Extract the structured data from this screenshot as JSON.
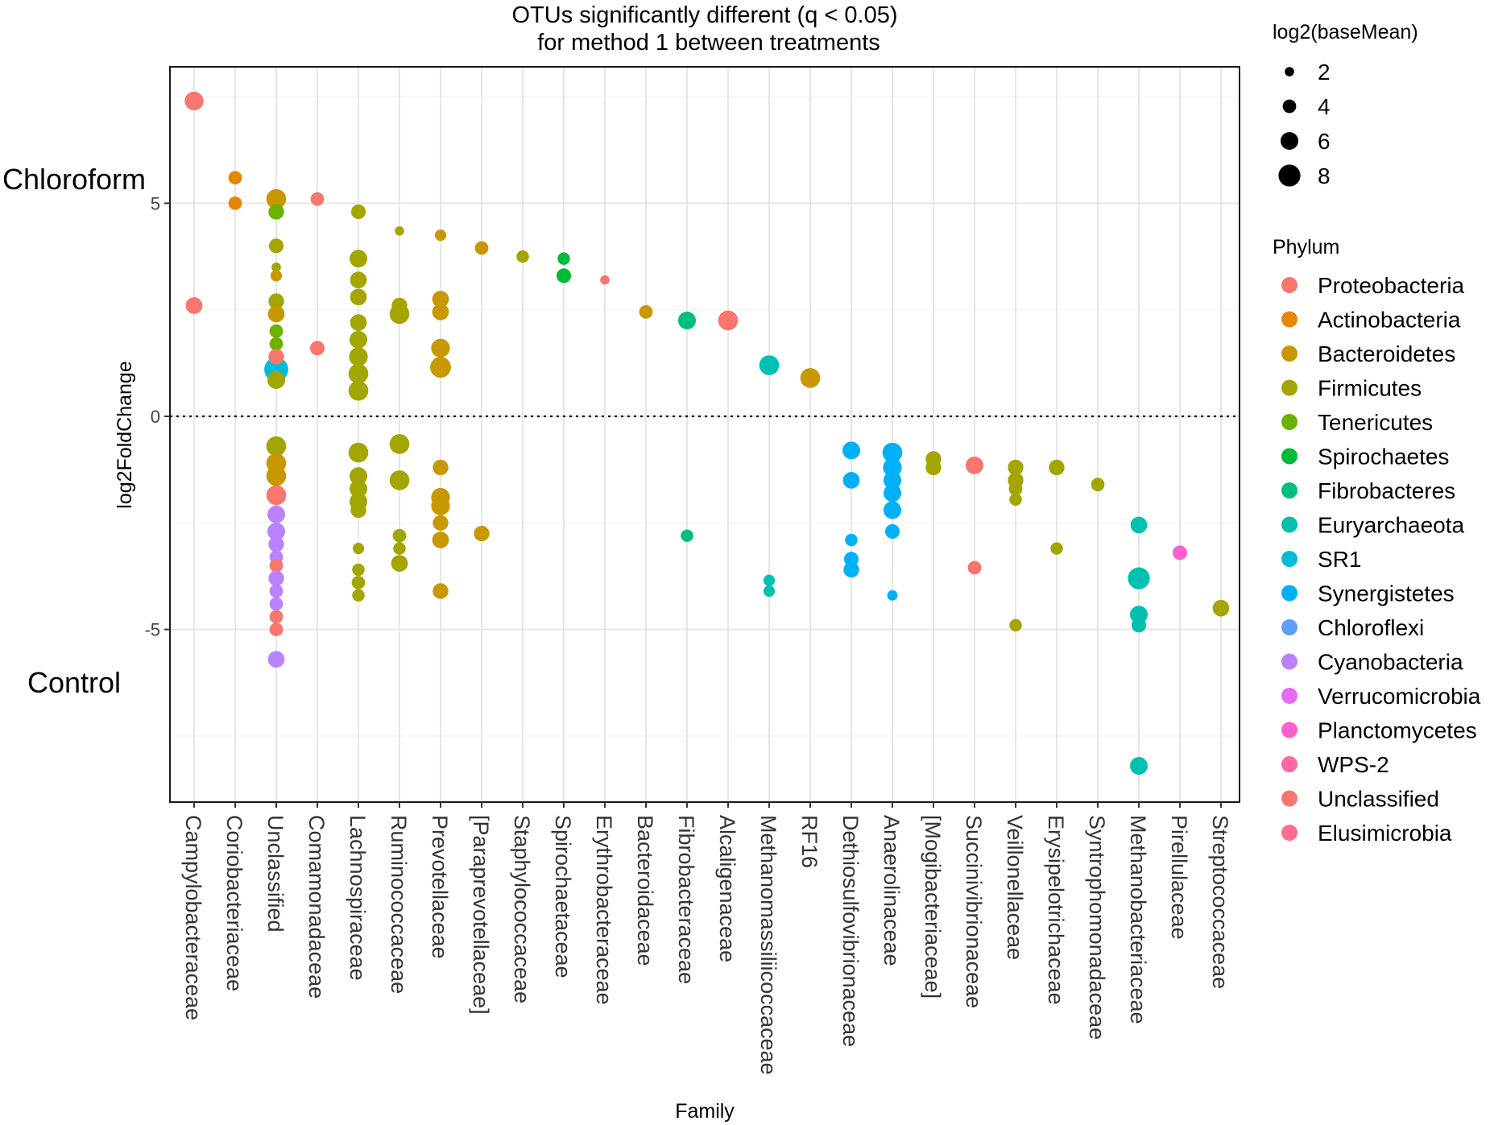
{
  "chart_data": {
    "type": "scatter",
    "title_lines": [
      "OTUs significantly different (q < 0.05)",
      "for method 1 between treatments"
    ],
    "xlabel": "Family",
    "ylabel": "log2FoldChange",
    "ylim": [
      -9.05,
      8.2
    ],
    "yticks": [
      -5,
      0,
      5
    ],
    "ytick_labels": [
      "-5",
      "0",
      "5"
    ],
    "reference_line": 0,
    "group_labels": {
      "top": "Chloroform",
      "bottom": "Control"
    },
    "categories": [
      "Campylobacteraceae",
      "Coriobacteriaceae",
      "Unclassified",
      "Comamonadaceae",
      "Lachnospiraceae",
      "Ruminococcaceae",
      "Prevotellaceae",
      "[Paraprevotellaceae]",
      "Staphylococcaceae",
      "Spirochaetaceae",
      "Erythrobacteraceae",
      "Bacteroidaceae",
      "Fibrobacteraceae",
      "Alcaligenaceae",
      "Methanomassiliicoccaceae",
      "RF16",
      "Dethiosulfovibrionaceae",
      "Anaerolinaceae",
      "[Mogibacteriaceae]",
      "Succinivibrionaceae",
      "Veillonellaceae",
      "Erysipelotrichaceae",
      "Syntrophomonadaceae",
      "Methanobacteriaceae",
      "Pirellulaceae",
      "Streptococcaceae"
    ],
    "size_legend": {
      "title": "log2(baseMean)",
      "values": [
        2,
        4,
        6,
        8
      ]
    },
    "phylum_legend": {
      "title": "Phylum",
      "entries": [
        {
          "name": "Proteobacteria",
          "color": "#F8766D"
        },
        {
          "name": "Actinobacteria",
          "color": "#E58700"
        },
        {
          "name": "Bacteroidetes",
          "color": "#C99800"
        },
        {
          "name": "Firmicutes",
          "color": "#A3A500"
        },
        {
          "name": "Tenericutes",
          "color": "#6BB100"
        },
        {
          "name": "Spirochaetes",
          "color": "#00BA38"
        },
        {
          "name": "Fibrobacteres",
          "color": "#00BF7D"
        },
        {
          "name": "Euryarchaeota",
          "color": "#00C0AF"
        },
        {
          "name": "SR1",
          "color": "#00BCD8"
        },
        {
          "name": "Synergistetes",
          "color": "#00B0F6"
        },
        {
          "name": "Chloroflexi",
          "color": "#619CFF"
        },
        {
          "name": "Cyanobacteria",
          "color": "#B983FF"
        },
        {
          "name": "Verrucomicrobia",
          "color": "#E76BF3"
        },
        {
          "name": "Planctomycetes",
          "color": "#FD61D1"
        },
        {
          "name": "WPS-2",
          "color": "#FF67A4"
        },
        {
          "name": "Unclassified",
          "color": "#F8766D"
        },
        {
          "name": "Elusimicrobia",
          "color": "#FF6C91"
        }
      ]
    },
    "colors": {
      "Proteobacteria": "#F8766D",
      "Actinobacteria": "#E58700",
      "Bacteroidetes": "#C99800",
      "Firmicutes": "#A3A500",
      "Tenericutes": "#6BB100",
      "Spirochaetes": "#00BA38",
      "Fibrobacteres": "#00BF7D",
      "Euryarchaeota": "#00C0AF",
      "SR1": "#00BCD8",
      "Synergistetes": "#00B0F6",
      "Chloroflexi": "#619CFF",
      "Cyanobacteria": "#B983FF",
      "Verrucomicrobia": "#E76BF3",
      "Planctomycetes": "#FD61D1",
      "WPS-2": "#FF67A4",
      "Unclassified": "#F8766D",
      "Elusimicrobia": "#FF6C91"
    },
    "points": [
      {
        "family": "Campylobacteraceae",
        "phylum": "Proteobacteria",
        "log2FoldChange": 7.4,
        "baseMean": 6.5
      },
      {
        "family": "Campylobacteraceae",
        "phylum": "Proteobacteria",
        "log2FoldChange": 2.6,
        "baseMean": 5.5
      },
      {
        "family": "Coriobacteriaceae",
        "phylum": "Actinobacteria",
        "log2FoldChange": 5.6,
        "baseMean": 4
      },
      {
        "family": "Coriobacteriaceae",
        "phylum": "Actinobacteria",
        "log2FoldChange": 5.0,
        "baseMean": 4
      },
      {
        "family": "Unclassified",
        "phylum": "Bacteroidetes",
        "log2FoldChange": 5.1,
        "baseMean": 7
      },
      {
        "family": "Unclassified",
        "phylum": "Tenericutes",
        "log2FoldChange": 4.8,
        "baseMean": 5
      },
      {
        "family": "Unclassified",
        "phylum": "Firmicutes",
        "log2FoldChange": 4.0,
        "baseMean": 4.5
      },
      {
        "family": "Unclassified",
        "phylum": "Firmicutes",
        "log2FoldChange": 3.5,
        "baseMean": 2
      },
      {
        "family": "Unclassified",
        "phylum": "Bacteroidetes",
        "log2FoldChange": 3.3,
        "baseMean": 3
      },
      {
        "family": "Unclassified",
        "phylum": "Firmicutes",
        "log2FoldChange": 2.7,
        "baseMean": 5
      },
      {
        "family": "Unclassified",
        "phylum": "Bacteroidetes",
        "log2FoldChange": 2.4,
        "baseMean": 5.5
      },
      {
        "family": "Unclassified",
        "phylum": "Tenericutes",
        "log2FoldChange": 2.0,
        "baseMean": 4
      },
      {
        "family": "Unclassified",
        "phylum": "Tenericutes",
        "log2FoldChange": 1.7,
        "baseMean": 4
      },
      {
        "family": "Unclassified",
        "phylum": "SR1",
        "log2FoldChange": 1.1,
        "baseMean": 9
      },
      {
        "family": "Unclassified",
        "phylum": "Proteobacteria",
        "log2FoldChange": 1.4,
        "baseMean": 5
      },
      {
        "family": "Unclassified",
        "phylum": "Firmicutes",
        "log2FoldChange": 0.85,
        "baseMean": 6
      },
      {
        "family": "Unclassified",
        "phylum": "Firmicutes",
        "log2FoldChange": -0.7,
        "baseMean": 7
      },
      {
        "family": "Unclassified",
        "phylum": "Bacteroidetes",
        "log2FoldChange": -1.1,
        "baseMean": 7
      },
      {
        "family": "Unclassified",
        "phylum": "Bacteroidetes",
        "log2FoldChange": -1.4,
        "baseMean": 7
      },
      {
        "family": "Unclassified",
        "phylum": "Proteobacteria",
        "log2FoldChange": -1.85,
        "baseMean": 7
      },
      {
        "family": "Unclassified",
        "phylum": "Cyanobacteria",
        "log2FoldChange": -2.3,
        "baseMean": 6
      },
      {
        "family": "Unclassified",
        "phylum": "Cyanobacteria",
        "log2FoldChange": -2.7,
        "baseMean": 6
      },
      {
        "family": "Unclassified",
        "phylum": "Cyanobacteria",
        "log2FoldChange": -3.0,
        "baseMean": 5
      },
      {
        "family": "Unclassified",
        "phylum": "Cyanobacteria",
        "log2FoldChange": -3.3,
        "baseMean": 4
      },
      {
        "family": "Unclassified",
        "phylum": "Proteobacteria",
        "log2FoldChange": -3.5,
        "baseMean": 4
      },
      {
        "family": "Unclassified",
        "phylum": "Cyanobacteria",
        "log2FoldChange": -3.8,
        "baseMean": 5
      },
      {
        "family": "Unclassified",
        "phylum": "Cyanobacteria",
        "log2FoldChange": -4.1,
        "baseMean": 4
      },
      {
        "family": "Unclassified",
        "phylum": "Cyanobacteria",
        "log2FoldChange": -4.4,
        "baseMean": 4
      },
      {
        "family": "Unclassified",
        "phylum": "Proteobacteria",
        "log2FoldChange": -4.7,
        "baseMean": 4
      },
      {
        "family": "Unclassified",
        "phylum": "Proteobacteria",
        "log2FoldChange": -5.0,
        "baseMean": 4
      },
      {
        "family": "Unclassified",
        "phylum": "Cyanobacteria",
        "log2FoldChange": -5.7,
        "baseMean": 5.5
      },
      {
        "family": "Comamonadaceae",
        "phylum": "Proteobacteria",
        "log2FoldChange": 5.1,
        "baseMean": 4
      },
      {
        "family": "Comamonadaceae",
        "phylum": "Proteobacteria",
        "log2FoldChange": 1.6,
        "baseMean": 4.5
      },
      {
        "family": "Lachnospiraceae",
        "phylum": "Firmicutes",
        "log2FoldChange": 4.8,
        "baseMean": 4.5
      },
      {
        "family": "Lachnospiraceae",
        "phylum": "Firmicutes",
        "log2FoldChange": 3.7,
        "baseMean": 6
      },
      {
        "family": "Lachnospiraceae",
        "phylum": "Firmicutes",
        "log2FoldChange": 3.2,
        "baseMean": 5.5
      },
      {
        "family": "Lachnospiraceae",
        "phylum": "Firmicutes",
        "log2FoldChange": 2.8,
        "baseMean": 5.5
      },
      {
        "family": "Lachnospiraceae",
        "phylum": "Firmicutes",
        "log2FoldChange": 2.2,
        "baseMean": 5.5
      },
      {
        "family": "Lachnospiraceae",
        "phylum": "Firmicutes",
        "log2FoldChange": 1.8,
        "baseMean": 6
      },
      {
        "family": "Lachnospiraceae",
        "phylum": "Firmicutes",
        "log2FoldChange": 1.4,
        "baseMean": 6.5
      },
      {
        "family": "Lachnospiraceae",
        "phylum": "Firmicutes",
        "log2FoldChange": 1.0,
        "baseMean": 7
      },
      {
        "family": "Lachnospiraceae",
        "phylum": "Firmicutes",
        "log2FoldChange": 0.6,
        "baseMean": 7
      },
      {
        "family": "Lachnospiraceae",
        "phylum": "Firmicutes",
        "log2FoldChange": -0.85,
        "baseMean": 7
      },
      {
        "family": "Lachnospiraceae",
        "phylum": "Firmicutes",
        "log2FoldChange": -1.4,
        "baseMean": 6
      },
      {
        "family": "Lachnospiraceae",
        "phylum": "Firmicutes",
        "log2FoldChange": -1.7,
        "baseMean": 6
      },
      {
        "family": "Lachnospiraceae",
        "phylum": "Firmicutes",
        "log2FoldChange": -2.0,
        "baseMean": 6
      },
      {
        "family": "Lachnospiraceae",
        "phylum": "Firmicutes",
        "log2FoldChange": -2.2,
        "baseMean": 5
      },
      {
        "family": "Lachnospiraceae",
        "phylum": "Firmicutes",
        "log2FoldChange": -3.1,
        "baseMean": 3
      },
      {
        "family": "Lachnospiraceae",
        "phylum": "Firmicutes",
        "log2FoldChange": -3.6,
        "baseMean": 3.5
      },
      {
        "family": "Lachnospiraceae",
        "phylum": "Firmicutes",
        "log2FoldChange": -3.9,
        "baseMean": 4
      },
      {
        "family": "Lachnospiraceae",
        "phylum": "Firmicutes",
        "log2FoldChange": -4.2,
        "baseMean": 3.5
      },
      {
        "family": "Ruminococcaceae",
        "phylum": "Firmicutes",
        "log2FoldChange": 4.35,
        "baseMean": 2
      },
      {
        "family": "Ruminococcaceae",
        "phylum": "Firmicutes",
        "log2FoldChange": 2.4,
        "baseMean": 7
      },
      {
        "family": "Ruminococcaceae",
        "phylum": "Firmicutes",
        "log2FoldChange": 2.6,
        "baseMean": 5
      },
      {
        "family": "Ruminococcaceae",
        "phylum": "Firmicutes",
        "log2FoldChange": -0.65,
        "baseMean": 7
      },
      {
        "family": "Ruminococcaceae",
        "phylum": "Firmicutes",
        "log2FoldChange": -1.5,
        "baseMean": 7
      },
      {
        "family": "Ruminococcaceae",
        "phylum": "Firmicutes",
        "log2FoldChange": -2.8,
        "baseMean": 4
      },
      {
        "family": "Ruminococcaceae",
        "phylum": "Firmicutes",
        "log2FoldChange": -3.1,
        "baseMean": 3.5
      },
      {
        "family": "Ruminococcaceae",
        "phylum": "Firmicutes",
        "log2FoldChange": -3.45,
        "baseMean": 5.5
      },
      {
        "family": "Prevotellaceae",
        "phylum": "Bacteroidetes",
        "log2FoldChange": 4.25,
        "baseMean": 3
      },
      {
        "family": "Prevotellaceae",
        "phylum": "Bacteroidetes",
        "log2FoldChange": 2.75,
        "baseMean": 5.5
      },
      {
        "family": "Prevotellaceae",
        "phylum": "Bacteroidetes",
        "log2FoldChange": 2.45,
        "baseMean": 5.5
      },
      {
        "family": "Prevotellaceae",
        "phylum": "Bacteroidetes",
        "log2FoldChange": 1.6,
        "baseMean": 6.5
      },
      {
        "family": "Prevotellaceae",
        "phylum": "Bacteroidetes",
        "log2FoldChange": 1.15,
        "baseMean": 7.5
      },
      {
        "family": "Prevotellaceae",
        "phylum": "Bacteroidetes",
        "log2FoldChange": -1.2,
        "baseMean": 5
      },
      {
        "family": "Prevotellaceae",
        "phylum": "Bacteroidetes",
        "log2FoldChange": -1.9,
        "baseMean": 6.5
      },
      {
        "family": "Prevotellaceae",
        "phylum": "Bacteroidetes",
        "log2FoldChange": -2.1,
        "baseMean": 6.5
      },
      {
        "family": "Prevotellaceae",
        "phylum": "Bacteroidetes",
        "log2FoldChange": -2.5,
        "baseMean": 5
      },
      {
        "family": "Prevotellaceae",
        "phylum": "Bacteroidetes",
        "log2FoldChange": -2.9,
        "baseMean": 5.5
      },
      {
        "family": "Prevotellaceae",
        "phylum": "Bacteroidetes",
        "log2FoldChange": -4.1,
        "baseMean": 5
      },
      {
        "family": "[Paraprevotellaceae]",
        "phylum": "Bacteroidetes",
        "log2FoldChange": 3.95,
        "baseMean": 4
      },
      {
        "family": "[Paraprevotellaceae]",
        "phylum": "Bacteroidetes",
        "log2FoldChange": -2.75,
        "baseMean": 5
      },
      {
        "family": "Staphylococcaceae",
        "phylum": "Firmicutes",
        "log2FoldChange": 3.75,
        "baseMean": 3.5
      },
      {
        "family": "Spirochaetaceae",
        "phylum": "Spirochaetes",
        "log2FoldChange": 3.7,
        "baseMean": 3.5
      },
      {
        "family": "Spirochaetaceae",
        "phylum": "Spirochaetes",
        "log2FoldChange": 3.3,
        "baseMean": 4.5
      },
      {
        "family": "Erythrobacteraceae",
        "phylum": "Proteobacteria",
        "log2FoldChange": 3.2,
        "baseMean": 2
      },
      {
        "family": "Bacteroidaceae",
        "phylum": "Bacteroidetes",
        "log2FoldChange": 2.45,
        "baseMean": 4
      },
      {
        "family": "Fibrobacteraceae",
        "phylum": "Fibrobacteres",
        "log2FoldChange": 2.25,
        "baseMean": 6
      },
      {
        "family": "Fibrobacteraceae",
        "phylum": "Fibrobacteres",
        "log2FoldChange": -2.8,
        "baseMean": 3.5
      },
      {
        "family": "Alcaligenaceae",
        "phylum": "Proteobacteria",
        "log2FoldChange": 2.25,
        "baseMean": 7
      },
      {
        "family": "Methanomassiliicoccaceae",
        "phylum": "Euryarchaeota",
        "log2FoldChange": 1.2,
        "baseMean": 7
      },
      {
        "family": "Methanomassiliicoccaceae",
        "phylum": "Euryarchaeota",
        "log2FoldChange": -3.85,
        "baseMean": 3
      },
      {
        "family": "Methanomassiliicoccaceae",
        "phylum": "Euryarchaeota",
        "log2FoldChange": -4.1,
        "baseMean": 3
      },
      {
        "family": "RF16",
        "phylum": "Bacteroidetes",
        "log2FoldChange": 0.9,
        "baseMean": 7
      },
      {
        "family": "Dethiosulfovibrionaceae",
        "phylum": "Synergistetes",
        "log2FoldChange": -0.8,
        "baseMean": 6
      },
      {
        "family": "Dethiosulfovibrionaceae",
        "phylum": "Synergistetes",
        "log2FoldChange": -1.5,
        "baseMean": 5.5
      },
      {
        "family": "Dethiosulfovibrionaceae",
        "phylum": "Synergistetes",
        "log2FoldChange": -2.9,
        "baseMean": 3.5
      },
      {
        "family": "Dethiosulfovibrionaceae",
        "phylum": "Synergistetes",
        "log2FoldChange": -3.35,
        "baseMean": 4.5
      },
      {
        "family": "Dethiosulfovibrionaceae",
        "phylum": "Synergistetes",
        "log2FoldChange": -3.6,
        "baseMean": 5
      },
      {
        "family": "Anaerolinaceae",
        "phylum": "Synergistetes",
        "log2FoldChange": -0.85,
        "baseMean": 7
      },
      {
        "family": "Anaerolinaceae",
        "phylum": "Synergistetes",
        "log2FoldChange": -1.2,
        "baseMean": 6.5
      },
      {
        "family": "Anaerolinaceae",
        "phylum": "Synergistetes",
        "log2FoldChange": -1.5,
        "baseMean": 6
      },
      {
        "family": "Anaerolinaceae",
        "phylum": "Synergistetes",
        "log2FoldChange": -1.8,
        "baseMean": 6
      },
      {
        "family": "Anaerolinaceae",
        "phylum": "Synergistetes",
        "log2FoldChange": -2.2,
        "baseMean": 6
      },
      {
        "family": "Anaerolinaceae",
        "phylum": "Synergistetes",
        "log2FoldChange": -2.7,
        "baseMean": 4.5
      },
      {
        "family": "Anaerolinaceae",
        "phylum": "Synergistetes",
        "log2FoldChange": -4.2,
        "baseMean": 2.5
      },
      {
        "family": "[Mogibacteriaceae]",
        "phylum": "Firmicutes",
        "log2FoldChange": -1.0,
        "baseMean": 5
      },
      {
        "family": "[Mogibacteriaceae]",
        "phylum": "Firmicutes",
        "log2FoldChange": -1.2,
        "baseMean": 5
      },
      {
        "family": "Succinivibrionaceae",
        "phylum": "Proteobacteria",
        "log2FoldChange": -1.15,
        "baseMean": 6
      },
      {
        "family": "Succinivibrionaceae",
        "phylum": "Proteobacteria",
        "log2FoldChange": -3.55,
        "baseMean": 4
      },
      {
        "family": "Veillonellaceae",
        "phylum": "Firmicutes",
        "log2FoldChange": -1.2,
        "baseMean": 5
      },
      {
        "family": "Veillonellaceae",
        "phylum": "Firmicutes",
        "log2FoldChange": -1.5,
        "baseMean": 5
      },
      {
        "family": "Veillonellaceae",
        "phylum": "Firmicutes",
        "log2FoldChange": -1.7,
        "baseMean": 4
      },
      {
        "family": "Veillonellaceae",
        "phylum": "Firmicutes",
        "log2FoldChange": -1.95,
        "baseMean": 3.5
      },
      {
        "family": "Veillonellaceae",
        "phylum": "Firmicutes",
        "log2FoldChange": -4.9,
        "baseMean": 3.5
      },
      {
        "family": "Erysipelotrichaceae",
        "phylum": "Firmicutes",
        "log2FoldChange": -1.2,
        "baseMean": 5
      },
      {
        "family": "Erysipelotrichaceae",
        "phylum": "Firmicutes",
        "log2FoldChange": -3.1,
        "baseMean": 3.5
      },
      {
        "family": "Syntrophomonadaceae",
        "phylum": "Firmicutes",
        "log2FoldChange": -1.6,
        "baseMean": 4
      },
      {
        "family": "Methanobacteriaceae",
        "phylum": "Euryarchaeota",
        "log2FoldChange": -2.55,
        "baseMean": 5.5
      },
      {
        "family": "Methanobacteriaceae",
        "phylum": "Euryarchaeota",
        "log2FoldChange": -3.8,
        "baseMean": 8
      },
      {
        "family": "Methanobacteriaceae",
        "phylum": "Euryarchaeota",
        "log2FoldChange": -4.65,
        "baseMean": 6
      },
      {
        "family": "Methanobacteriaceae",
        "phylum": "Euryarchaeota",
        "log2FoldChange": -4.9,
        "baseMean": 4.5
      },
      {
        "family": "Methanobacteriaceae",
        "phylum": "Euryarchaeota",
        "log2FoldChange": -8.2,
        "baseMean": 6
      },
      {
        "family": "Pirellulaceae",
        "phylum": "Planctomycetes",
        "log2FoldChange": -3.2,
        "baseMean": 4.5
      },
      {
        "family": "Streptococcaceae",
        "phylum": "Firmicutes",
        "log2FoldChange": -4.5,
        "baseMean": 5.5
      }
    ]
  }
}
